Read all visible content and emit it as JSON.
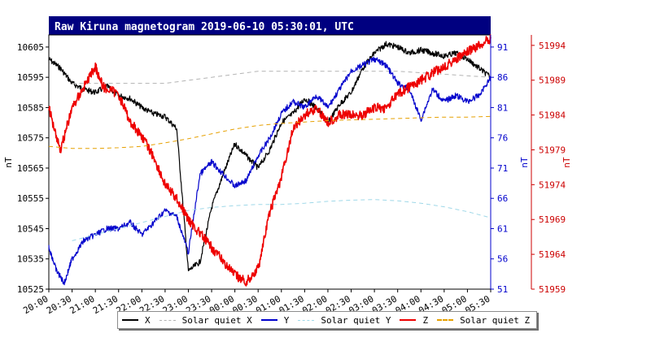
{
  "chart_data": {
    "type": "line",
    "title": "Raw Kiruna magnetogram 2019-06-10 05:30:01, UTC",
    "x_ticks": [
      "20:00",
      "20:30",
      "21:00",
      "21:30",
      "22:00",
      "22:30",
      "23:00",
      "23:30",
      "00:00",
      "00:30",
      "01:00",
      "01:30",
      "02:00",
      "02:30",
      "03:00",
      "03:30",
      "04:00",
      "04:30",
      "05:00",
      "05:30"
    ],
    "xlim": [
      "20:00",
      "05:30"
    ],
    "y_left": {
      "label": "nT",
      "ticks": [
        10525,
        10535,
        10545,
        10555,
        10565,
        10575,
        10585,
        10595,
        10605
      ],
      "ylim": [
        10525,
        10609
      ],
      "color": "#000000"
    },
    "y_middle": {
      "label": "nT",
      "ticks": [
        51,
        56,
        61,
        66,
        71,
        76,
        81,
        86,
        91
      ],
      "ylim": [
        51,
        93
      ],
      "color": "#0000cc"
    },
    "y_right": {
      "label": "nT",
      "ticks": [
        51959,
        51964,
        51969,
        51974,
        51979,
        51984,
        51989,
        51994
      ],
      "ylim": [
        51959,
        51995.5
      ],
      "color": "#cc0000"
    },
    "grid": false,
    "series": [
      {
        "name": "X",
        "axis": "left",
        "color": "#000000",
        "style": "solid",
        "x": [
          "20:00",
          "20:15",
          "20:30",
          "20:45",
          "21:00",
          "21:15",
          "21:30",
          "21:45",
          "22:00",
          "22:15",
          "22:30",
          "22:45",
          "23:00",
          "23:15",
          "23:30",
          "23:45",
          "00:00",
          "00:15",
          "00:30",
          "00:45",
          "01:00",
          "01:15",
          "01:30",
          "01:45",
          "02:00",
          "02:15",
          "02:30",
          "02:45",
          "03:00",
          "03:15",
          "03:30",
          "03:45",
          "04:00",
          "04:15",
          "04:30",
          "04:45",
          "05:00",
          "05:15",
          "05:30"
        ],
        "values": [
          10601,
          10598,
          10593,
          10591,
          10590,
          10592,
          10589,
          10588,
          10585,
          10583,
          10582,
          10578,
          10531,
          10534,
          10552,
          10563,
          10573,
          10569,
          10565,
          10571,
          10580,
          10583,
          10588,
          10585,
          10580,
          10586,
          10590,
          10598,
          10603,
          10606,
          10605,
          10603,
          10604,
          10603,
          10602,
          10603,
          10601,
          10598,
          10595
        ]
      },
      {
        "name": "Solar quiet X",
        "axis": "left",
        "color": "#b3b3b3",
        "style": "dashed",
        "x": [
          "20:30",
          "21:30",
          "22:30",
          "23:30",
          "00:30",
          "01:30",
          "02:30",
          "03:30",
          "04:30",
          "05:30"
        ],
        "values": [
          10593,
          10593,
          10593,
          10595,
          10597,
          10597,
          10597,
          10597,
          10596,
          10595
        ]
      },
      {
        "name": "Y",
        "axis": "middle",
        "color": "#0000cc",
        "style": "solid",
        "x": [
          "20:00",
          "20:10",
          "20:20",
          "20:30",
          "20:45",
          "21:00",
          "21:15",
          "21:30",
          "21:45",
          "22:00",
          "22:15",
          "22:30",
          "22:45",
          "23:00",
          "23:15",
          "23:30",
          "23:45",
          "00:00",
          "00:15",
          "00:30",
          "00:45",
          "01:00",
          "01:15",
          "01:30",
          "01:45",
          "02:00",
          "02:15",
          "02:30",
          "02:45",
          "03:00",
          "03:15",
          "03:30",
          "03:45",
          "04:00",
          "04:15",
          "04:30",
          "04:45",
          "05:00",
          "05:15",
          "05:30"
        ],
        "values": [
          58,
          54,
          52,
          56,
          59,
          60,
          61,
          61,
          62,
          60,
          62,
          64,
          63,
          57,
          70,
          72,
          70,
          68,
          69,
          73,
          76,
          80,
          82,
          81,
          83,
          81,
          84,
          87,
          88,
          89,
          88,
          85,
          84,
          79,
          84,
          82,
          83,
          82,
          83,
          86
        ]
      },
      {
        "name": "Solar quiet Y",
        "axis": "middle",
        "color": "#9fd8e8",
        "style": "dashed",
        "x": [
          "20:30",
          "21:00",
          "21:30",
          "22:00",
          "22:30",
          "23:00",
          "23:30",
          "00:00",
          "00:30",
          "01:00",
          "01:30",
          "02:00",
          "02:30",
          "03:00",
          "03:30",
          "04:00",
          "04:30",
          "05:00",
          "05:30"
        ],
        "values": [
          59,
          60,
          61,
          62,
          63,
          64,
          64.5,
          64.8,
          65,
          65,
          65.2,
          65.5,
          65.7,
          65.8,
          65.6,
          65.2,
          64.6,
          63.8,
          62.8
        ]
      },
      {
        "name": "Z",
        "axis": "right",
        "color": "#ee0000",
        "style": "solid",
        "x": [
          "20:00",
          "20:15",
          "20:30",
          "20:45",
          "21:00",
          "21:10",
          "21:30",
          "21:45",
          "22:00",
          "22:15",
          "22:30",
          "22:45",
          "23:00",
          "23:15",
          "23:30",
          "23:45",
          "00:00",
          "00:15",
          "00:30",
          "00:45",
          "01:00",
          "01:15",
          "01:30",
          "01:45",
          "02:00",
          "02:15",
          "02:30",
          "02:45",
          "03:00",
          "03:15",
          "03:30",
          "03:45",
          "04:00",
          "04:15",
          "04:30",
          "04:45",
          "05:00",
          "05:15",
          "05:30"
        ],
        "values": [
          51985,
          51979,
          51985,
          51988,
          51991,
          51988,
          51987,
          51983,
          51981,
          51978,
          51974,
          51972,
          51969,
          51967,
          51965,
          51963,
          51961,
          51960,
          51962,
          51970,
          51975,
          51982,
          51984,
          51985,
          51983,
          51984,
          51984,
          51984,
          51985,
          51985,
          51987,
          51988,
          51989,
          51990,
          51991,
          51992,
          51993,
          51994,
          51995
        ]
      },
      {
        "name": "Solar quiet Z",
        "axis": "right",
        "color": "#e6a000",
        "style": "dashed",
        "x": [
          "20:00",
          "20:30",
          "21:00",
          "21:30",
          "22:00",
          "22:30",
          "23:00",
          "23:30",
          "00:00",
          "00:30",
          "01:00",
          "01:30",
          "02:00",
          "02:30",
          "03:00",
          "03:30",
          "04:00",
          "04:30",
          "05:00",
          "05:30"
        ],
        "values": [
          51979.5,
          51979.2,
          51979.2,
          51979.3,
          51979.5,
          51980,
          51980.6,
          51981.3,
          51982,
          51982.5,
          51982.8,
          51983,
          51983.2,
          51983.3,
          51983.4,
          51983.5,
          51983.6,
          51983.7,
          51983.7,
          51983.8
        ]
      }
    ],
    "legend": {
      "position": "bottom",
      "entries": [
        {
          "label": "X",
          "color": "#000000",
          "style": "solid"
        },
        {
          "label": "Solar quiet X",
          "color": "#b3b3b3",
          "style": "dashed"
        },
        {
          "label": "Y",
          "color": "#0000cc",
          "style": "solid"
        },
        {
          "label": "Solar quiet Y",
          "color": "#9fd8e8",
          "style": "dashed"
        },
        {
          "label": "Z",
          "color": "#ee0000",
          "style": "solid"
        },
        {
          "label": "Solar quiet Z",
          "color": "#e6a000",
          "style": "dashed"
        }
      ]
    },
    "title_bar_color": "#000080"
  }
}
